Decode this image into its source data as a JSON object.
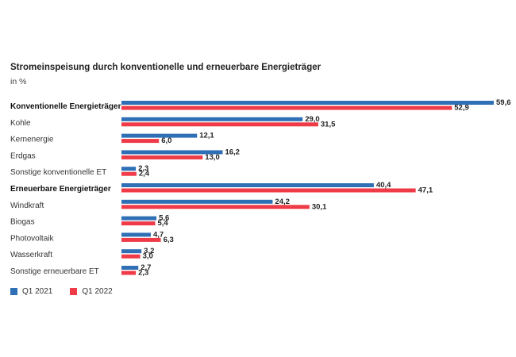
{
  "colors": {
    "q1_2021": "#2f6fb5",
    "q1_2022": "#ef3b47"
  },
  "chart_data": {
    "type": "bar",
    "orientation": "horizontal",
    "title": "Stromeinspeisung durch konventionelle und erneuerbare Energieträger",
    "subtitle": "in %",
    "categories": [
      "Konventionelle Energieträger",
      "Kohle",
      "Kernenergie",
      "Erdgas",
      "Sonstige konventionelle ET",
      "Erneuerbare Energieträger",
      "Windkraft",
      "Biogas",
      "Photovoltaik",
      "Wasserkraft",
      "Sonstige erneuerbare ET"
    ],
    "bold_categories": [
      "Konventionelle Energieträger",
      "Erneuerbare Energieträger"
    ],
    "series": [
      {
        "name": "Q1 2021",
        "color": "#2f6fb5",
        "values": [
          59.6,
          29.0,
          12.1,
          16.2,
          2.3,
          40.4,
          24.2,
          5.6,
          4.7,
          3.2,
          2.7
        ],
        "labels": [
          "59,6",
          "29,0",
          "12,1",
          "16,2",
          "2,3",
          "40,4",
          "24,2",
          "5,6",
          "4,7",
          "3,2",
          "2,7"
        ]
      },
      {
        "name": "Q1 2022",
        "color": "#ef3b47",
        "values": [
          52.9,
          31.5,
          6.0,
          13.0,
          2.4,
          47.1,
          30.1,
          5.4,
          6.3,
          3.0,
          2.3
        ],
        "labels": [
          "52,9",
          "31,5",
          "6,0",
          "13,0",
          "2,4",
          "47,1",
          "30,1",
          "5,4",
          "6,3",
          "3,0",
          "2,3"
        ]
      }
    ],
    "xlim": [
      0,
      59.6
    ],
    "grid": false,
    "legend_position": "bottom-left"
  }
}
